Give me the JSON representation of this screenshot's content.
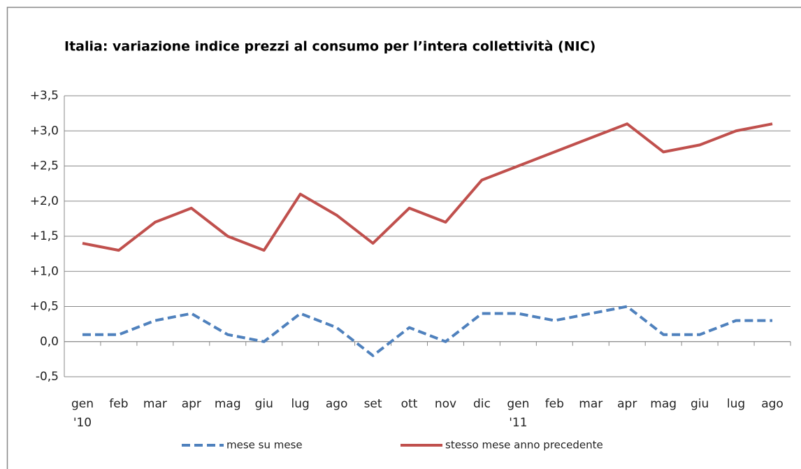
{
  "chart_data": {
    "type": "line",
    "title": "Italia: variazione indice prezzi al consumo per l’intera collettività (NIC)",
    "categories": [
      [
        "gen",
        "'10"
      ],
      [
        "feb",
        null
      ],
      [
        "mar",
        null
      ],
      [
        "apr",
        null
      ],
      [
        "mag",
        null
      ],
      [
        "giu",
        null
      ],
      [
        "lug",
        null
      ],
      [
        "ago",
        null
      ],
      [
        "set",
        null
      ],
      [
        "ott",
        null
      ],
      [
        "nov",
        null
      ],
      [
        "dic",
        null
      ],
      [
        "gen",
        "'11"
      ],
      [
        "feb",
        null
      ],
      [
        "mar",
        null
      ],
      [
        "apr",
        null
      ],
      [
        "mag",
        null
      ],
      [
        "giu",
        null
      ],
      [
        "lug",
        null
      ],
      [
        "ago",
        null
      ]
    ],
    "series": [
      {
        "name": "mese su mese",
        "color": "#4f81bd",
        "dashed": true,
        "values": [
          0.1,
          0.1,
          0.3,
          0.4,
          0.1,
          0.0,
          0.4,
          0.2,
          -0.2,
          0.2,
          0.0,
          0.4,
          0.4,
          0.3,
          0.4,
          0.5,
          0.1,
          0.1,
          0.3,
          0.3
        ]
      },
      {
        "name": "stesso mese anno precedente",
        "color": "#c0504d",
        "dashed": false,
        "values": [
          1.4,
          1.3,
          1.7,
          1.9,
          1.5,
          1.3,
          2.1,
          1.8,
          1.4,
          1.9,
          1.7,
          2.3,
          2.5,
          2.7,
          2.9,
          3.1,
          2.7,
          2.8,
          3.0,
          3.1
        ]
      }
    ],
    "ylim": [
      -0.5,
      3.5
    ],
    "yticks": [
      {
        "value": -0.5,
        "label": "-0,5"
      },
      {
        "value": 0,
        "label": "0,0"
      },
      {
        "value": 0.5,
        "label": "+0,5"
      },
      {
        "value": 1.0,
        "label": "+1,0"
      },
      {
        "value": 1.5,
        "label": "+1,5"
      },
      {
        "value": 2.0,
        "label": "+2,0"
      },
      {
        "value": 2.5,
        "label": "+2,5"
      },
      {
        "value": 3.0,
        "label": "+3,0"
      },
      {
        "value": 3.5,
        "label": "+3,5"
      }
    ],
    "grid": true,
    "legend": "bottom"
  }
}
